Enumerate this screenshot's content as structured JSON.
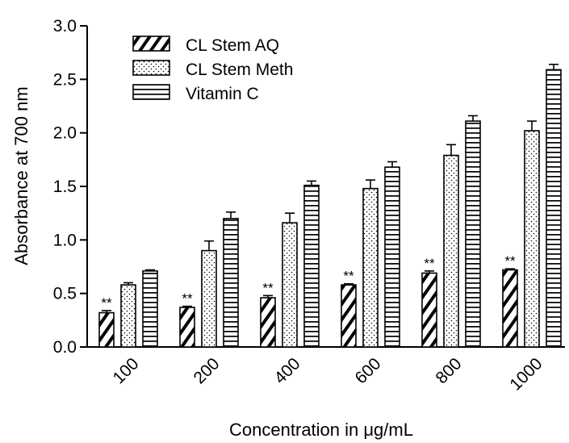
{
  "chart_data": {
    "type": "bar",
    "title": "",
    "xlabel": "Concentration in μg/mL",
    "ylabel": "Absorbance at 700 nm",
    "categories": [
      "100",
      "200",
      "400",
      "600",
      "800",
      "1000"
    ],
    "ylim": [
      0,
      3.0
    ],
    "yticks": [
      "0.0",
      "0.5",
      "1.0",
      "1.5",
      "2.0",
      "2.5",
      "3.0"
    ],
    "grid": false,
    "legend_position": "top-left",
    "series": [
      {
        "name": "CL Stem AQ",
        "pattern": "diagonal-hatch",
        "values": [
          0.32,
          0.37,
          0.46,
          0.58,
          0.69,
          0.72
        ],
        "errors": [
          0.02,
          0.01,
          0.02,
          0.01,
          0.02,
          0.01
        ]
      },
      {
        "name": "CL Stem Meth",
        "pattern": "dotted",
        "values": [
          0.58,
          0.9,
          1.16,
          1.48,
          1.79,
          2.02
        ],
        "errors": [
          0.02,
          0.09,
          0.09,
          0.08,
          0.1,
          0.09
        ]
      },
      {
        "name": "Vitamin C",
        "pattern": "horizontal-lines",
        "values": [
          0.71,
          1.2,
          1.51,
          1.68,
          2.11,
          2.59
        ],
        "errors": [
          0.01,
          0.06,
          0.04,
          0.05,
          0.05,
          0.05
        ]
      }
    ],
    "annotations": [
      {
        "category": "100",
        "series": "CL Stem AQ",
        "text": "**"
      },
      {
        "category": "200",
        "series": "CL Stem AQ",
        "text": "**"
      },
      {
        "category": "400",
        "series": "CL Stem AQ",
        "text": "**"
      },
      {
        "category": "600",
        "series": "CL Stem AQ",
        "text": "**"
      },
      {
        "category": "800",
        "series": "CL Stem AQ",
        "text": "**"
      },
      {
        "category": "1000",
        "series": "CL Stem AQ",
        "text": "**"
      }
    ],
    "colors": {
      "stroke": "#000000",
      "background": "#ffffff"
    }
  }
}
